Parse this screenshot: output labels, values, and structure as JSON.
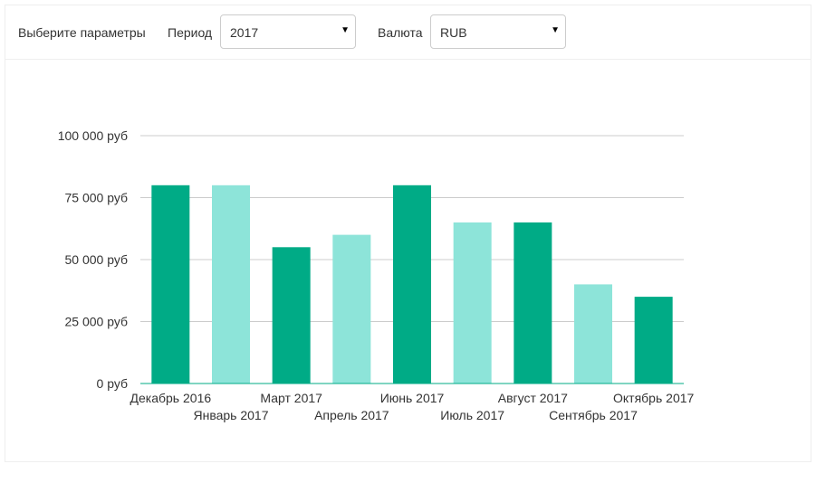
{
  "toolbar": {
    "title": "Выберите параметры",
    "period_label": "Период",
    "period_value": "2017",
    "currency_label": "Валюта",
    "currency_value": "RUB"
  },
  "colors": {
    "dark": "#00ab86",
    "light": "#8de4d9",
    "grid": "#cccccc",
    "baseline": "#00ab86"
  },
  "chart_data": {
    "type": "bar",
    "categories": [
      "Декабрь 2016",
      "Январь 2017",
      "Март 2017",
      "Апрель 2017",
      "Июнь 2017",
      "Июль 2017",
      "Август 2017",
      "Сентябрь 2017",
      "Октябрь 2017"
    ],
    "values": [
      80000,
      80000,
      55000,
      60000,
      80000,
      65000,
      65000,
      40000,
      35000
    ],
    "bar_shades": [
      "dark",
      "light",
      "dark",
      "light",
      "dark",
      "light",
      "dark",
      "light",
      "dark"
    ],
    "ylim": [
      0,
      100000
    ],
    "yticks": [
      0,
      25000,
      50000,
      75000,
      100000
    ],
    "ytick_labels": [
      "0 руб",
      "25 000 руб",
      "50 000 руб",
      "75 000 руб",
      "100 000 руб"
    ],
    "grid": true,
    "legend": "none",
    "title": "",
    "xlabel": "",
    "ylabel": ""
  }
}
